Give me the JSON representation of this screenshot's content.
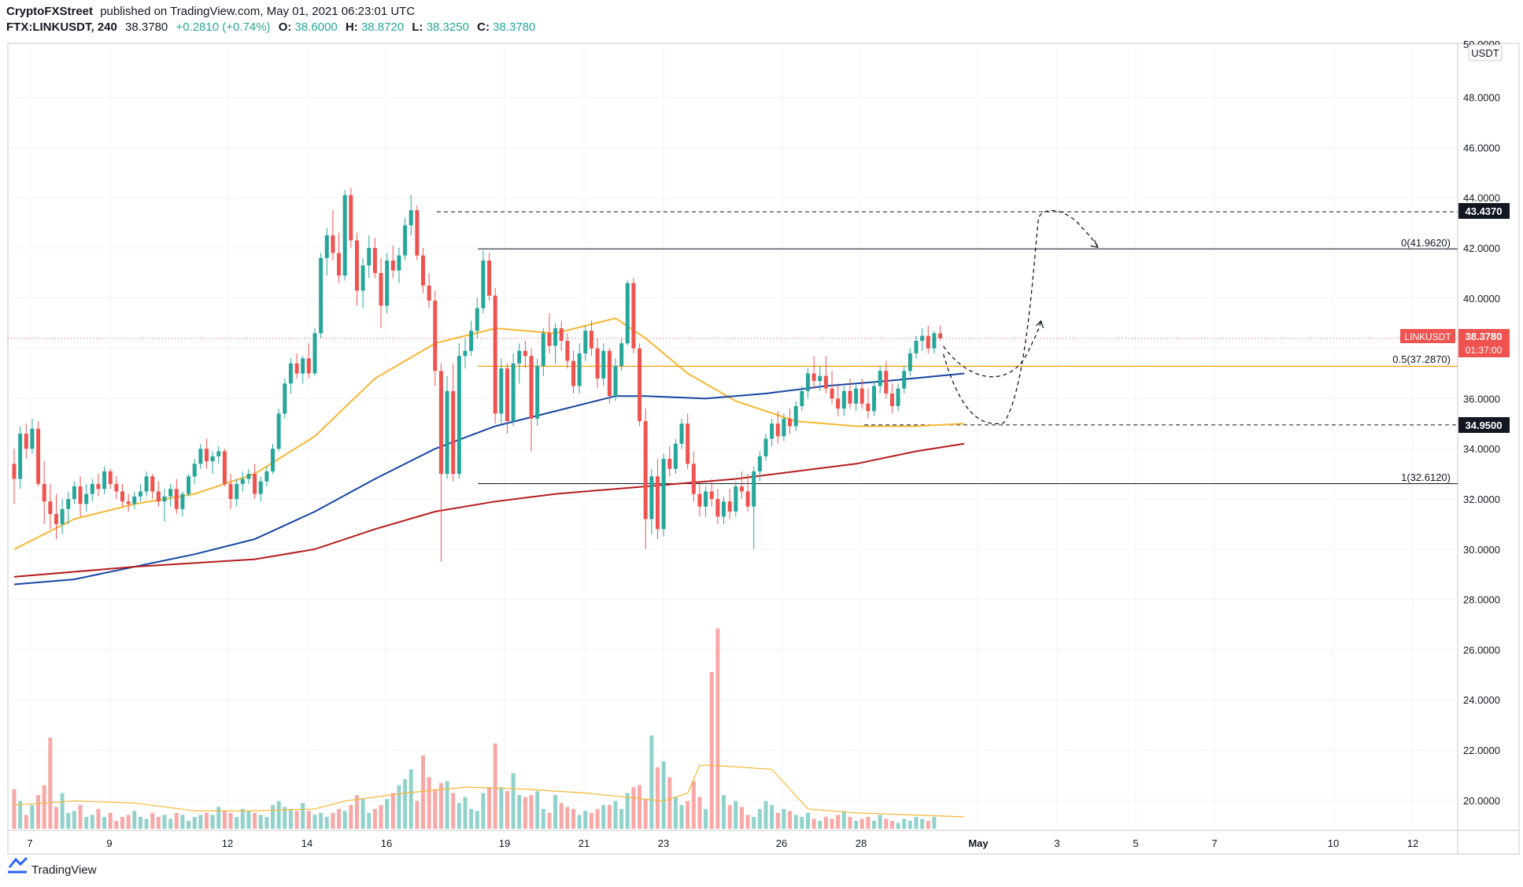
{
  "header": {
    "publisher": "CryptoFXStreet",
    "published_text": "published on TradingView.com, May 01, 2021 06:23:01 UTC",
    "symbol_line": "FTX:LINKUSDT, 240",
    "last": "38.3780",
    "change": "+0.2810 (+0.74%)",
    "open_label": "O:",
    "open": "38.6000",
    "high_label": "H:",
    "high": "38.8720",
    "low_label": "L:",
    "low": "38.3250",
    "close_label": "C:",
    "close": "38.3780"
  },
  "footer": {
    "brand": "TradingView",
    "logo_icon": "tradingview-logo-icon"
  },
  "price_axis": {
    "currency": "USDT",
    "top_label": "50.0000",
    "labels": [
      "48.0000",
      "46.0000",
      "44.0000",
      "42.0000",
      "40.0000",
      "38.0000",
      "36.0000",
      "34.0000",
      "32.0000",
      "30.0000",
      "28.0000",
      "26.0000",
      "24.0000",
      "22.0000",
      "20.0000"
    ]
  },
  "date_axis": [
    "7",
    "9",
    "12",
    "14",
    "16",
    "19",
    "21",
    "23",
    "26",
    "28",
    "May",
    "3",
    "5",
    "7",
    "10",
    "12"
  ],
  "price_tags": {
    "resistance": "43.4370",
    "current_symbol": "LINKUSDT",
    "current_price": "38.3780",
    "countdown": "01:37:00",
    "support": "34.9500"
  },
  "fib_labels": {
    "level_0": "0(41.9620)",
    "level_05": "0.5(37.2870)",
    "level_1": "1(32.6120)"
  },
  "colors": {
    "up": "#26a69a",
    "down": "#ef5350",
    "ma_fast": "#f7b733",
    "ma_mid": "#1746a2",
    "ma_slow": "#b71c1c",
    "price_tag": "#ef5350",
    "level_tag": "#131722",
    "fib_05": "#f59d0c"
  },
  "chart_data": {
    "type": "candlestick",
    "symbol": "FTX:LINKUSDT",
    "interval": "240",
    "ylim": [
      19,
      50
    ],
    "x_labels": [
      "7",
      "9",
      "12",
      "14",
      "16",
      "19",
      "21",
      "23",
      "26",
      "28",
      "May",
      "3",
      "5",
      "7",
      "10",
      "12"
    ],
    "candles": [
      [
        33.4,
        34.0,
        31.8,
        32.8
      ],
      [
        32.8,
        34.9,
        32.4,
        34.6
      ],
      [
        34.6,
        35.0,
        33.6,
        34.0
      ],
      [
        34.0,
        35.2,
        33.8,
        34.8
      ],
      [
        34.8,
        35.1,
        32.5,
        32.6
      ],
      [
        32.6,
        33.5,
        31.0,
        31.9
      ],
      [
        31.9,
        32.6,
        30.8,
        31.4
      ],
      [
        31.4,
        32.2,
        30.4,
        31.0
      ],
      [
        31.0,
        32.0,
        30.6,
        31.6
      ],
      [
        31.6,
        32.3,
        31.0,
        32.0
      ],
      [
        32.0,
        32.7,
        31.8,
        32.5
      ],
      [
        32.5,
        32.9,
        31.3,
        31.8
      ],
      [
        31.8,
        32.6,
        31.5,
        32.2
      ],
      [
        32.2,
        32.8,
        31.9,
        32.6
      ],
      [
        32.6,
        33.0,
        32.1,
        32.4
      ],
      [
        32.4,
        33.3,
        32.2,
        33.1
      ],
      [
        33.1,
        33.2,
        32.4,
        32.6
      ],
      [
        32.6,
        32.9,
        32.0,
        32.3
      ],
      [
        32.3,
        32.6,
        31.7,
        31.9
      ],
      [
        31.9,
        32.2,
        31.5,
        31.8
      ],
      [
        31.8,
        32.3,
        31.6,
        32.1
      ],
      [
        32.1,
        32.6,
        31.9,
        32.3
      ],
      [
        32.3,
        33.1,
        32.1,
        32.9
      ],
      [
        32.9,
        33.0,
        32.0,
        32.3
      ],
      [
        32.3,
        32.7,
        31.7,
        31.9
      ],
      [
        31.9,
        32.4,
        31.1,
        32.1
      ],
      [
        32.1,
        32.6,
        31.7,
        32.4
      ],
      [
        32.4,
        32.8,
        31.4,
        31.6
      ],
      [
        31.6,
        32.3,
        31.3,
        32.2
      ],
      [
        32.2,
        33.0,
        32.1,
        32.9
      ],
      [
        32.9,
        33.6,
        32.6,
        33.4
      ],
      [
        33.4,
        34.2,
        33.2,
        34.0
      ],
      [
        34.0,
        34.4,
        33.2,
        33.5
      ],
      [
        33.5,
        33.9,
        33.0,
        33.7
      ],
      [
        33.7,
        34.1,
        33.4,
        33.9
      ],
      [
        33.9,
        34.0,
        32.5,
        32.6
      ],
      [
        32.6,
        33.0,
        31.6,
        32.0
      ],
      [
        32.0,
        32.8,
        31.7,
        32.6
      ],
      [
        32.6,
        33.1,
        32.3,
        32.8
      ],
      [
        32.8,
        33.2,
        32.6,
        33.0
      ],
      [
        33.0,
        33.4,
        32.0,
        32.2
      ],
      [
        32.2,
        32.9,
        31.9,
        32.7
      ],
      [
        32.7,
        33.3,
        32.5,
        33.1
      ],
      [
        33.1,
        34.2,
        33.0,
        34.0
      ],
      [
        34.0,
        35.6,
        33.9,
        35.4
      ],
      [
        35.4,
        36.8,
        35.2,
        36.6
      ],
      [
        36.6,
        37.6,
        36.2,
        37.4
      ],
      [
        37.4,
        37.8,
        36.8,
        37.0
      ],
      [
        37.0,
        37.7,
        36.6,
        37.6
      ],
      [
        37.6,
        38.2,
        36.8,
        37.0
      ],
      [
        37.0,
        38.8,
        36.9,
        38.6
      ],
      [
        38.6,
        41.8,
        38.4,
        41.6
      ],
      [
        41.6,
        42.8,
        40.9,
        42.5
      ],
      [
        42.5,
        43.5,
        41.5,
        41.8
      ],
      [
        41.8,
        42.6,
        40.6,
        40.9
      ],
      [
        40.9,
        44.3,
        40.7,
        44.1
      ],
      [
        44.1,
        44.4,
        42.0,
        42.3
      ],
      [
        42.3,
        42.6,
        39.7,
        40.3
      ],
      [
        40.3,
        41.6,
        39.6,
        41.3
      ],
      [
        41.3,
        42.5,
        40.8,
        42.0
      ],
      [
        42.0,
        42.4,
        40.8,
        41.0
      ],
      [
        41.0,
        41.6,
        38.8,
        39.7
      ],
      [
        39.7,
        41.8,
        39.4,
        41.5
      ],
      [
        41.5,
        42.1,
        40.8,
        41.1
      ],
      [
        41.1,
        42.0,
        40.6,
        41.7
      ],
      [
        41.7,
        43.2,
        41.5,
        42.9
      ],
      [
        42.9,
        44.1,
        42.5,
        43.5
      ],
      [
        43.5,
        43.7,
        41.5,
        41.7
      ],
      [
        41.7,
        42.0,
        40.2,
        40.5
      ],
      [
        40.5,
        41.0,
        39.6,
        39.9
      ],
      [
        39.9,
        40.3,
        36.5,
        37.1
      ],
      [
        37.1,
        37.4,
        29.5,
        33.0
      ],
      [
        33.0,
        36.9,
        32.8,
        36.3
      ],
      [
        36.3,
        37.4,
        32.7,
        33.0
      ],
      [
        33.0,
        38.2,
        32.8,
        37.7
      ],
      [
        37.7,
        38.4,
        37.2,
        37.9
      ],
      [
        37.9,
        39.1,
        37.7,
        38.7
      ],
      [
        38.7,
        40.0,
        38.4,
        39.6
      ],
      [
        39.6,
        41.9,
        39.4,
        41.5
      ],
      [
        41.5,
        41.8,
        39.9,
        40.1
      ],
      [
        40.1,
        40.4,
        35.0,
        35.4
      ],
      [
        35.4,
        37.6,
        35.0,
        37.2
      ],
      [
        37.2,
        37.4,
        34.6,
        35.1
      ],
      [
        35.1,
        37.8,
        34.9,
        37.4
      ],
      [
        37.4,
        38.2,
        36.6,
        37.9
      ],
      [
        37.9,
        38.3,
        37.2,
        37.7
      ],
      [
        37.7,
        38.0,
        33.9,
        35.2
      ],
      [
        35.2,
        37.6,
        34.9,
        37.3
      ],
      [
        37.3,
        38.8,
        36.9,
        38.6
      ],
      [
        38.6,
        39.4,
        37.8,
        38.1
      ],
      [
        38.1,
        39.0,
        37.4,
        38.8
      ],
      [
        38.8,
        39.1,
        37.9,
        38.3
      ],
      [
        38.3,
        38.6,
        37.2,
        37.5
      ],
      [
        37.5,
        37.9,
        36.2,
        36.5
      ],
      [
        36.5,
        38.2,
        36.2,
        37.8
      ],
      [
        37.8,
        38.9,
        37.5,
        38.7
      ],
      [
        38.7,
        39.1,
        37.7,
        38.0
      ],
      [
        38.0,
        38.4,
        36.4,
        36.8
      ],
      [
        36.8,
        38.2,
        36.5,
        37.9
      ],
      [
        37.9,
        38.0,
        35.8,
        36.1
      ],
      [
        36.1,
        37.6,
        35.9,
        37.3
      ],
      [
        37.3,
        38.4,
        37.1,
        38.2
      ],
      [
        38.2,
        40.7,
        38.1,
        40.6
      ],
      [
        40.6,
        40.8,
        37.8,
        38.0
      ],
      [
        38.0,
        38.2,
        34.9,
        35.1
      ],
      [
        35.1,
        35.6,
        30.0,
        31.2
      ],
      [
        31.2,
        33.2,
        30.6,
        32.9
      ],
      [
        32.9,
        33.6,
        30.4,
        30.8
      ],
      [
        30.8,
        33.8,
        30.5,
        33.6
      ],
      [
        33.6,
        34.1,
        32.9,
        33.2
      ],
      [
        33.2,
        34.4,
        33.0,
        34.2
      ],
      [
        34.2,
        35.2,
        34.0,
        35.0
      ],
      [
        35.0,
        35.4,
        33.2,
        33.4
      ],
      [
        33.4,
        33.9,
        31.9,
        32.2
      ],
      [
        32.2,
        32.6,
        31.3,
        31.7
      ],
      [
        31.7,
        32.5,
        31.3,
        32.3
      ],
      [
        32.3,
        32.8,
        31.7,
        32.0
      ],
      [
        32.0,
        32.4,
        31.0,
        31.3
      ],
      [
        31.3,
        32.1,
        31.0,
        31.9
      ],
      [
        31.9,
        32.4,
        31.2,
        31.5
      ],
      [
        31.5,
        32.7,
        31.3,
        32.5
      ],
      [
        32.5,
        33.1,
        32.0,
        32.3
      ],
      [
        32.3,
        33.0,
        31.5,
        31.7
      ],
      [
        31.7,
        33.3,
        30.0,
        33.1
      ],
      [
        33.1,
        33.9,
        32.7,
        33.7
      ],
      [
        33.7,
        34.6,
        33.5,
        34.4
      ],
      [
        34.4,
        35.2,
        34.1,
        35.0
      ],
      [
        35.0,
        35.5,
        34.2,
        34.5
      ],
      [
        34.5,
        35.4,
        34.3,
        35.2
      ],
      [
        35.2,
        35.6,
        34.6,
        34.9
      ],
      [
        34.9,
        35.9,
        34.7,
        35.7
      ],
      [
        35.7,
        36.5,
        35.5,
        36.3
      ],
      [
        36.3,
        37.2,
        36.0,
        37.0
      ],
      [
        37.0,
        37.7,
        36.4,
        36.7
      ],
      [
        36.7,
        37.3,
        36.3,
        36.9
      ],
      [
        36.9,
        37.7,
        36.2,
        36.4
      ],
      [
        36.4,
        37.1,
        35.8,
        36.0
      ],
      [
        36.0,
        36.6,
        35.3,
        35.6
      ],
      [
        35.6,
        36.5,
        35.3,
        36.3
      ],
      [
        36.3,
        36.8,
        35.6,
        35.8
      ],
      [
        35.8,
        36.6,
        35.5,
        36.4
      ],
      [
        36.4,
        36.8,
        35.6,
        35.8
      ],
      [
        35.8,
        36.4,
        35.2,
        35.5
      ],
      [
        35.5,
        36.7,
        35.3,
        36.5
      ],
      [
        36.5,
        37.3,
        36.2,
        37.1
      ],
      [
        37.1,
        37.5,
        36.0,
        36.2
      ],
      [
        36.2,
        36.6,
        35.4,
        35.7
      ],
      [
        35.7,
        36.6,
        35.5,
        36.4
      ],
      [
        36.4,
        37.3,
        36.2,
        37.1
      ],
      [
        37.1,
        38.0,
        36.9,
        37.8
      ],
      [
        37.8,
        38.5,
        37.6,
        38.3
      ],
      [
        38.3,
        38.8,
        37.9,
        38.5
      ],
      [
        38.5,
        38.9,
        37.8,
        38.0
      ],
      [
        38.0,
        38.7,
        37.8,
        38.6
      ],
      [
        38.6,
        38.9,
        38.3,
        38.4
      ]
    ],
    "volume": [
      2.0,
      1.4,
      0.7,
      1.2,
      1.7,
      2.2,
      4.6,
      1.1,
      1.8,
      0.8,
      0.9,
      1.2,
      0.6,
      0.7,
      1.0,
      0.6,
      0.8,
      0.4,
      0.6,
      0.7,
      0.9,
      0.6,
      0.5,
      0.8,
      0.6,
      0.7,
      0.5,
      0.8,
      0.7,
      0.4,
      0.6,
      0.7,
      0.8,
      0.7,
      1.1,
      0.9,
      0.8,
      0.6,
      1.0,
      0.9,
      0.8,
      0.7,
      0.6,
      1.2,
      1.4,
      1.1,
      1.0,
      0.9,
      1.3,
      0.9,
      0.7,
      0.8,
      0.6,
      0.8,
      1.0,
      0.9,
      1.2,
      1.7,
      1.5,
      0.8,
      1.0,
      1.2,
      1.5,
      1.8,
      2.2,
      2.5,
      3.0,
      1.4,
      3.7,
      2.6,
      2.0,
      2.3,
      2.4,
      1.8,
      1.3,
      1.6,
      1.0,
      0.9,
      1.8,
      2.1,
      4.3,
      2.1,
      1.9,
      2.8,
      1.7,
      1.6,
      1.7,
      1.9,
      1.0,
      0.8,
      1.7,
      1.3,
      1.1,
      1.0,
      0.7,
      0.9,
      0.8,
      1.0,
      1.2,
      1.2,
      1.4,
      1.0,
      1.8,
      2.1,
      2.2,
      1.5,
      4.7,
      3.1,
      3.4,
      2.6,
      1.6,
      1.2,
      1.4,
      2.4,
      1.6,
      1.0,
      7.9,
      10.1,
      1.7,
      1.2,
      1.4,
      1.1,
      0.7,
      0.6,
      1.0,
      1.4,
      1.2,
      0.8,
      1.0,
      0.9,
      0.7,
      0.6,
      0.8,
      0.5,
      0.4,
      0.6,
      0.5,
      0.7,
      0.9,
      0.6,
      0.4,
      0.5,
      0.6,
      0.4,
      0.7,
      0.5,
      0.4,
      0.3,
      0.5,
      0.4,
      0.6,
      0.5,
      0.4,
      0.6
    ],
    "moving_averages": [
      {
        "color": "#f7b733",
        "points": [
          [
            0,
            30.0
          ],
          [
            10,
            31.2
          ],
          [
            20,
            31.8
          ],
          [
            30,
            32.2
          ],
          [
            40,
            33.0
          ],
          [
            50,
            34.5
          ],
          [
            60,
            36.8
          ],
          [
            70,
            38.2
          ],
          [
            80,
            38.8
          ],
          [
            90,
            38.6
          ],
          [
            100,
            39.2
          ],
          [
            105,
            38.4
          ],
          [
            112,
            37.0
          ],
          [
            120,
            35.9
          ],
          [
            130,
            35.1
          ],
          [
            140,
            34.9
          ],
          [
            150,
            34.9
          ],
          [
            158,
            35.0
          ]
        ]
      },
      {
        "color": "#1746a2",
        "points": [
          [
            0,
            28.6
          ],
          [
            10,
            28.8
          ],
          [
            20,
            29.3
          ],
          [
            30,
            29.8
          ],
          [
            40,
            30.4
          ],
          [
            50,
            31.5
          ],
          [
            60,
            32.8
          ],
          [
            70,
            34.0
          ],
          [
            80,
            34.9
          ],
          [
            90,
            35.5
          ],
          [
            100,
            36.1
          ],
          [
            105,
            36.1
          ],
          [
            115,
            36.0
          ],
          [
            125,
            36.2
          ],
          [
            135,
            36.5
          ],
          [
            145,
            36.7
          ],
          [
            158,
            37.0
          ]
        ]
      },
      {
        "color": "#b71c1c",
        "points": [
          [
            0,
            28.9
          ],
          [
            20,
            29.3
          ],
          [
            40,
            29.6
          ],
          [
            50,
            30.0
          ],
          [
            60,
            30.8
          ],
          [
            70,
            31.5
          ],
          [
            80,
            31.9
          ],
          [
            90,
            32.2
          ],
          [
            100,
            32.4
          ],
          [
            110,
            32.6
          ],
          [
            120,
            32.8
          ],
          [
            130,
            33.1
          ],
          [
            140,
            33.4
          ],
          [
            150,
            33.9
          ],
          [
            158,
            34.2
          ]
        ]
      },
      {
        "color": "#f7b733",
        "volume": true,
        "points": [
          [
            0,
            1.2
          ],
          [
            10,
            1.4
          ],
          [
            20,
            1.3
          ],
          [
            30,
            0.9
          ],
          [
            40,
            0.9
          ],
          [
            50,
            1.0
          ],
          [
            55,
            1.4
          ],
          [
            65,
            1.8
          ],
          [
            75,
            2.1
          ],
          [
            85,
            2.0
          ],
          [
            95,
            1.8
          ],
          [
            108,
            1.4
          ],
          [
            112,
            1.8
          ],
          [
            114,
            3.2
          ],
          [
            116,
            3.2
          ],
          [
            126,
            3.0
          ],
          [
            132,
            1.0
          ],
          [
            140,
            0.8
          ],
          [
            158,
            0.6
          ]
        ]
      }
    ],
    "levels": [
      {
        "name": "resistance",
        "value": 43.437,
        "style": "dashed"
      },
      {
        "name": "fib_0",
        "value": 41.962,
        "style": "solid"
      },
      {
        "name": "fib_0.5",
        "value": 37.287,
        "style": "solid"
      },
      {
        "name": "support",
        "value": 34.95,
        "style": "dashed"
      },
      {
        "name": "fib_1",
        "value": 32.612,
        "style": "solid"
      }
    ]
  }
}
